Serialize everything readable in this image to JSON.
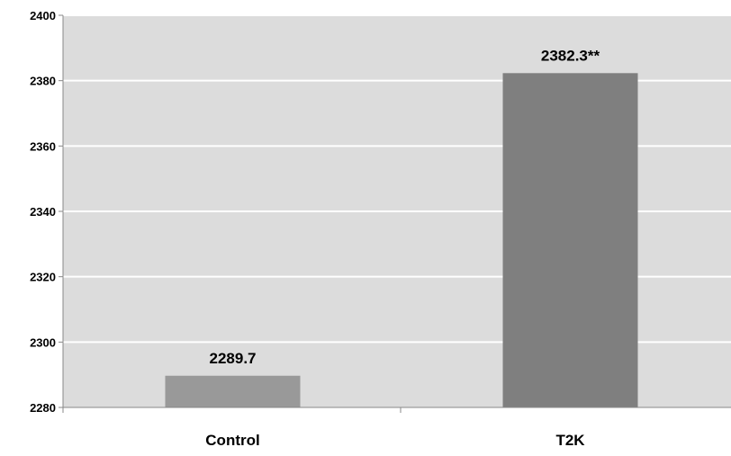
{
  "chart_data": {
    "type": "bar",
    "categories": [
      "Control",
      "T2K"
    ],
    "values": [
      2289.7,
      2382.3
    ],
    "data_labels": [
      "2289.7",
      "2382.3**"
    ],
    "title": "",
    "xlabel": "",
    "ylabel": "",
    "ylim": [
      2280,
      2400
    ],
    "yticks": [
      2280,
      2300,
      2320,
      2340,
      2360,
      2380,
      2400
    ],
    "ytick_labels": [
      "2280",
      "2300",
      "2320",
      "2340",
      "2360",
      "2380",
      "2400"
    ],
    "grid": true,
    "legend": "none",
    "colors": {
      "plot_background": "#dcdcdc",
      "gridline": "#ffffff",
      "bars": [
        "#999999",
        "#7f7f7f"
      ],
      "axis": "#888888"
    }
  }
}
